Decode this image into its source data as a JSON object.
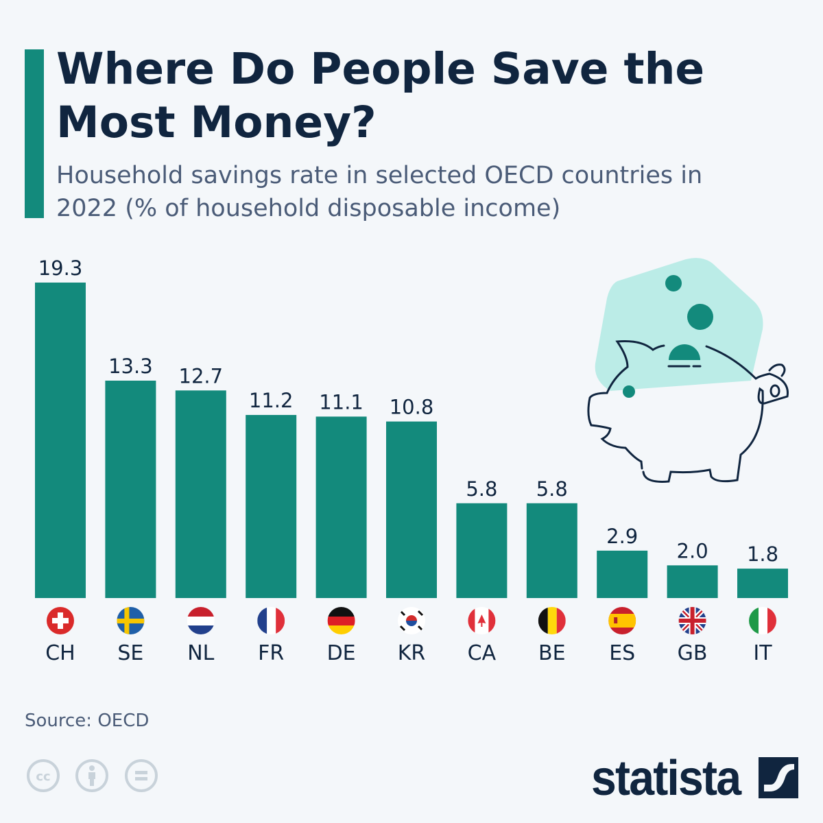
{
  "title": "Where Do People Save the Most Money?",
  "subtitle": "Household savings rate in selected OECD countries in 2022 (% of household disposable income)",
  "source": "Source: OECD",
  "brand": "statista",
  "license_icons": [
    "cc-icon",
    "attribution-icon",
    "no-derivatives-icon"
  ],
  "colors": {
    "bar": "#138a7c",
    "title": "#10253f",
    "subtitle": "#4a5b77",
    "piggy_bg": "#bbece7"
  },
  "chart_data": {
    "type": "bar",
    "title": "Where Do People Save the Most Money?",
    "categories": [
      "CH",
      "SE",
      "NL",
      "FR",
      "DE",
      "KR",
      "CA",
      "BE",
      "ES",
      "GB",
      "IT"
    ],
    "values": [
      19.3,
      13.3,
      12.7,
      11.2,
      11.1,
      10.8,
      5.8,
      5.8,
      2.9,
      2.0,
      1.8
    ],
    "value_labels": [
      "19.3",
      "13.3",
      "12.7",
      "11.2",
      "11.1",
      "10.8",
      "5.8",
      "5.8",
      "2.9",
      "2.0",
      "1.8"
    ],
    "flags": [
      "switzerland",
      "sweden",
      "netherlands",
      "france",
      "germany",
      "south-korea",
      "canada",
      "belgium",
      "spain",
      "united-kingdom",
      "italy"
    ],
    "xlabel": "",
    "ylabel": "",
    "ylim": [
      0,
      19.3
    ],
    "grid": false,
    "legend": "none"
  }
}
